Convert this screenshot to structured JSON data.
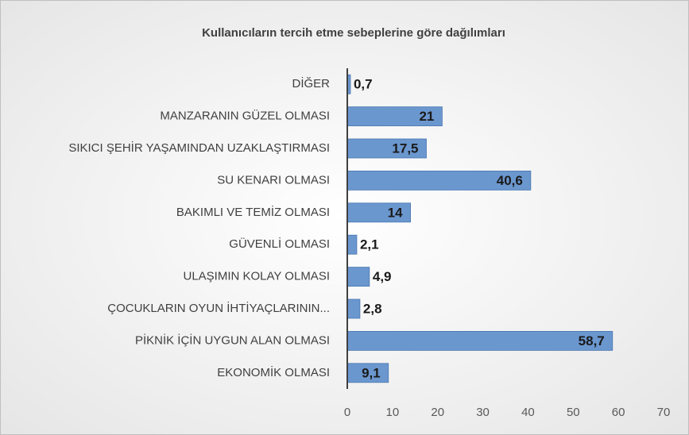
{
  "chart_data": {
    "type": "hbar",
    "title": "Kullanıcıların tercih etme sebeplerine göre dağılımları",
    "categories": [
      "DİĞER",
      "MANZARANIN GÜZEL OLMASI",
      "SIKICI ŞEHİR YAŞAMINDAN UZAKLAŞTIRMASI",
      "SU KENARI OLMASI",
      "BAKIMLI VE TEMİZ OLMASI",
      "GÜVENLİ OLMASI",
      "ULAŞIMIN KOLAY OLMASI",
      "ÇOCUKLARIN OYUN İHTİYAÇLARININ...",
      "PİKNİK İÇİN UYGUN ALAN OLMASI",
      "EKONOMİK OLMASI"
    ],
    "values": [
      0.7,
      21,
      17.5,
      40.6,
      14,
      2.1,
      4.9,
      2.8,
      58.7,
      9.1
    ],
    "value_labels": [
      "0,7",
      "21",
      "17,5",
      "40,6",
      "14",
      "2,1",
      "4,9",
      "2,8",
      "58,7",
      "9,1"
    ],
    "color": "#6b97cf",
    "xlim": [
      0,
      70
    ],
    "xticks": [
      0,
      10,
      20,
      30,
      40,
      50,
      60,
      70
    ]
  }
}
